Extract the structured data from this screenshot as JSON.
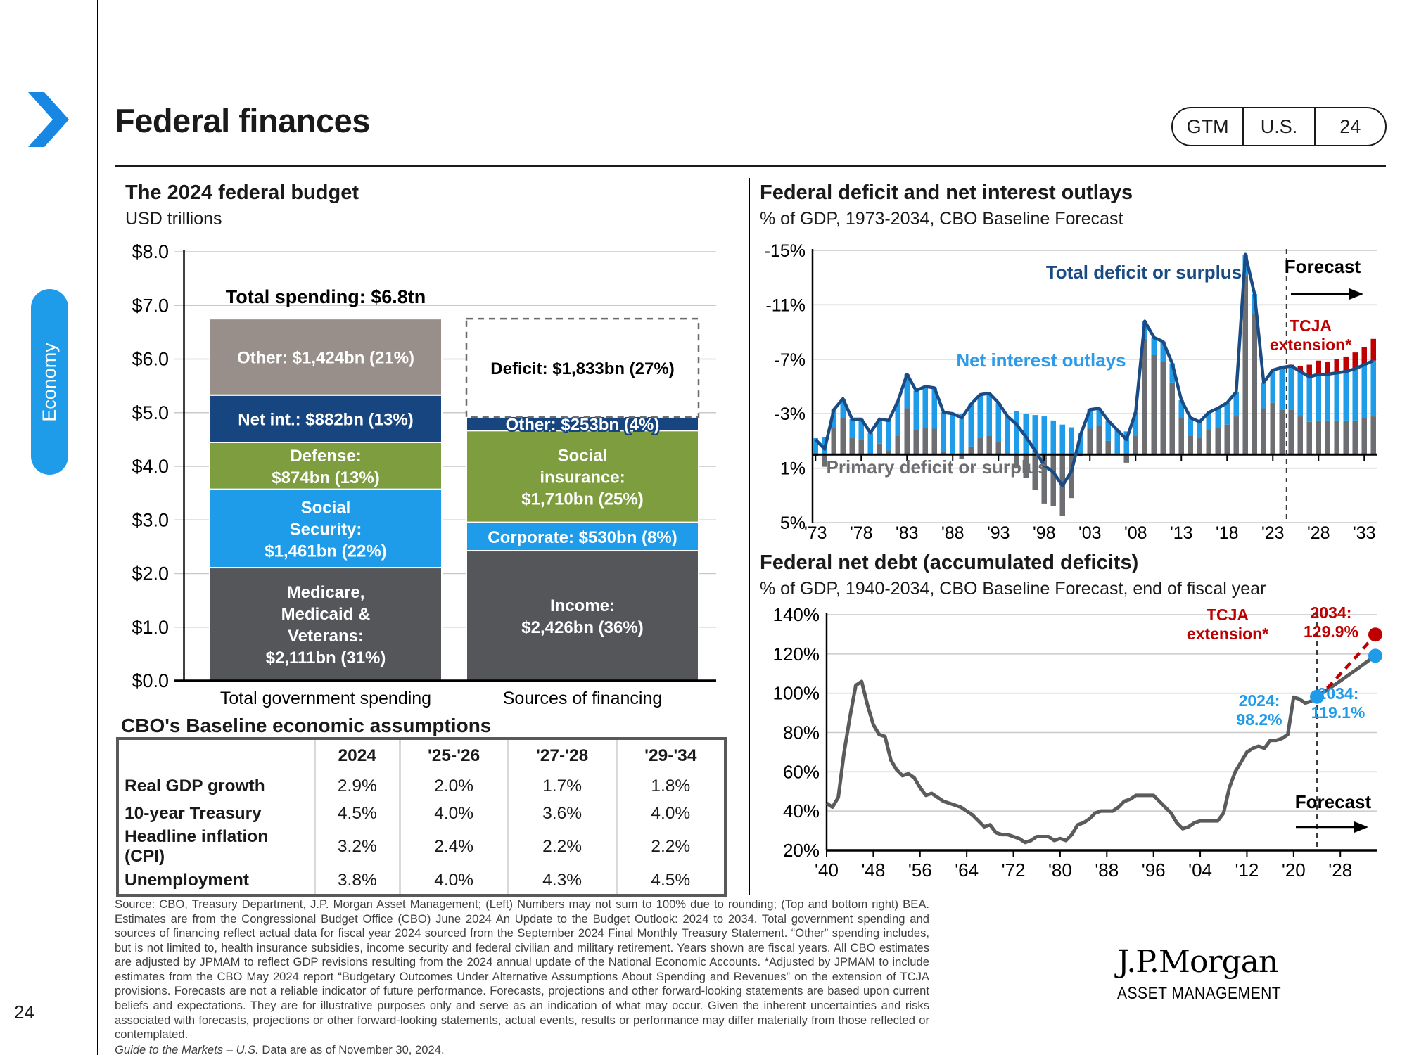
{
  "slide": {
    "title": "Federal finances",
    "page_number": "24",
    "section_tab": "Economy",
    "badge": {
      "gtm": "GTM",
      "region": "U.S.",
      "page": "24"
    }
  },
  "colors": {
    "blue": "#1E9CE9",
    "navy": "#17457F",
    "green": "#7E9D3E",
    "darkgray": "#54565A",
    "taupe": "#998F8A",
    "red": "#C00000",
    "line_navy": "#1A4B85",
    "bar_gray": "#6D6E71",
    "debt_gray": "#595B5D",
    "label_blue": "#2D9BE8",
    "grid": "#C9C9C9",
    "accent": "#1E9CE9"
  },
  "chart_data": [
    {
      "type": "bar",
      "variant": "stacked",
      "title": "The 2024 federal budget",
      "subtitle": "USD trillions",
      "ylabel": "USD trillions",
      "ylim": [
        0,
        8
      ],
      "ytick_prefix": "$",
      "annotation": "Total spending: $6.8tn",
      "categories": [
        "Total government spending",
        "Sources of financing"
      ],
      "bars": [
        {
          "category": "Total government spending",
          "segments": [
            {
              "name": "Medicare, Medicaid & Veterans",
              "value_bn": 2111,
              "pct": "31%",
              "color": "darkgray",
              "label": "Medicare,\nMedicaid &\nVeterans:\n$2,111bn (31%)"
            },
            {
              "name": "Social Security",
              "value_bn": 1461,
              "pct": "22%",
              "color": "blue",
              "label": "Social\nSecurity:\n$1,461bn (22%)"
            },
            {
              "name": "Defense",
              "value_bn": 874,
              "pct": "13%",
              "color": "green",
              "label": "Defense:\n$874bn (13%)"
            },
            {
              "name": "Net interest",
              "value_bn": 882,
              "pct": "13%",
              "color": "navy",
              "label": "Net int.: $882bn (13%)"
            },
            {
              "name": "Other",
              "value_bn": 1424,
              "pct": "21%",
              "color": "taupe",
              "label": "Other: $1,424bn (21%)"
            }
          ]
        },
        {
          "category": "Sources of financing",
          "segments": [
            {
              "name": "Income taxes",
              "value_bn": 2426,
              "pct": "36%",
              "color": "darkgray",
              "label": "Income:\n$2,426bn (36%)"
            },
            {
              "name": "Corporate taxes",
              "value_bn": 530,
              "pct": "8%",
              "color": "blue",
              "label": "Corporate: $530bn (8%)"
            },
            {
              "name": "Social insurance",
              "value_bn": 1710,
              "pct": "25%",
              "color": "green",
              "label": "Social\ninsurance:\n$1,710bn (25%)"
            },
            {
              "name": "Other",
              "value_bn": 253,
              "pct": "4%",
              "color": "navy",
              "label": "Other: $253bn (4%)",
              "outline": true
            },
            {
              "name": "Deficit",
              "value_bn": 1833,
              "pct": "27%",
              "style": "dashed",
              "label": "Deficit: $1,833bn (27%)"
            }
          ]
        }
      ]
    },
    {
      "type": "bar",
      "variant": "stacked-bars-with-line",
      "title": "Federal deficit and net interest outlays",
      "subtitle": "% of GDP, 1973-2034, CBO Baseline Forecast",
      "x_start": 1973,
      "x_end": 2034,
      "ylim": [
        -15,
        5
      ],
      "y_ticks": [
        "-15%",
        "-11%",
        "-7%",
        "-3%",
        "1%",
        "5%"
      ],
      "y_tick_values": [
        -15,
        -11,
        -7,
        -3,
        1,
        5
      ],
      "xtick_labels": [
        "'73",
        "'78",
        "'83",
        "'88",
        "'93",
        "'98",
        "'03",
        "'08",
        "'13",
        "'18",
        "'23",
        "'28",
        "'33"
      ],
      "forecast_boundary_year": 2024.5,
      "series": [
        {
          "name": "Total deficit or surplus",
          "type": "line",
          "color": "line_navy",
          "values": [
            -1.1,
            -0.4,
            -3.3,
            -4.1,
            -2.6,
            -2.6,
            -1.6,
            -2.6,
            -2.5,
            -3.9,
            -5.9,
            -4.7,
            -5.0,
            -4.9,
            -3.1,
            -3.0,
            -2.7,
            -3.7,
            -4.4,
            -4.5,
            -3.8,
            -2.8,
            -2.2,
            -1.3,
            -0.3,
            0.8,
            1.3,
            2.3,
            1.2,
            -1.5,
            -3.3,
            -3.4,
            -2.5,
            -1.8,
            -1.1,
            -3.1,
            -9.8,
            -8.6,
            -8.3,
            -6.7,
            -4.0,
            -2.7,
            -2.4,
            -3.1,
            -3.4,
            -3.8,
            -4.6,
            -14.7,
            -11.8,
            -5.3,
            -6.2,
            -6.4,
            -6.5,
            -6.1,
            -5.7,
            -5.9,
            -5.9,
            -6.0,
            -6.1,
            -6.3,
            -6.6,
            -6.9
          ]
        },
        {
          "name": "Net interest outlays",
          "type": "bar",
          "color": "blue",
          "values": [
            1.2,
            1.3,
            1.3,
            1.4,
            1.4,
            1.5,
            1.6,
            1.8,
            2.2,
            2.5,
            2.5,
            2.9,
            3.0,
            3.0,
            2.9,
            2.9,
            3.0,
            3.1,
            3.2,
            3.1,
            2.9,
            2.8,
            3.2,
            3.0,
            2.9,
            2.8,
            2.5,
            2.2,
            2.0,
            1.6,
            1.4,
            1.3,
            1.5,
            1.7,
            1.7,
            1.7,
            1.3,
            1.3,
            1.5,
            1.4,
            1.3,
            1.3,
            1.2,
            1.3,
            1.4,
            1.6,
            1.8,
            1.6,
            1.5,
            1.9,
            2.4,
            3.1,
            3.2,
            3.3,
            3.3,
            3.4,
            3.4,
            3.5,
            3.6,
            3.8,
            3.9,
            4.1
          ]
        },
        {
          "name": "Primary deficit or surplus",
          "type": "bar",
          "color": "bar_gray",
          "derived": "total_minus_net_interest"
        },
        {
          "name": "TCJA extension*",
          "type": "bar",
          "color": "red",
          "start_year": 2025,
          "extra_values": [
            0.1,
            0.4,
            0.9,
            1.0,
            0.9,
            1.0,
            1.1,
            1.2,
            1.3,
            1.6
          ]
        }
      ],
      "labels": {
        "total": "Total deficit or surplus",
        "net": "Net interest outlays",
        "primary": "Primary deficit or surplus",
        "forecast": "Forecast",
        "tcja_1": "TCJA",
        "tcja_2": "extension*"
      }
    },
    {
      "type": "line",
      "title": "Federal net debt (accumulated deficits)",
      "subtitle": "% of GDP, 1940-2034, CBO Baseline Forecast, end of fiscal year",
      "x_start": 1940,
      "x_end": 2034,
      "ylim": [
        20,
        140
      ],
      "y_ticks": [
        "20%",
        "40%",
        "60%",
        "80%",
        "100%",
        "120%",
        "140%"
      ],
      "y_tick_values": [
        20,
        40,
        60,
        80,
        100,
        120,
        140
      ],
      "xtick_labels": [
        "'40",
        "'48",
        "'56",
        "'64",
        "'72",
        "'80",
        "'88",
        "'96",
        "'04",
        "'12",
        "'20",
        "'28"
      ],
      "forecast_boundary_year": 2024,
      "series": [
        {
          "name": "Net debt (CBO baseline)",
          "color": "debt_gray",
          "values": [
            44,
            42,
            47,
            70,
            88,
            104,
            106,
            94,
            84,
            79,
            78,
            66,
            61,
            58,
            59,
            57,
            52,
            48,
            49,
            47,
            45,
            44,
            43,
            42,
            40,
            38,
            35,
            32,
            33,
            29,
            28,
            28,
            27,
            26,
            24,
            25,
            27,
            27,
            27,
            25,
            26,
            25,
            28,
            33,
            34,
            36,
            39,
            40,
            40,
            40,
            42,
            45,
            46,
            48,
            48,
            48,
            48,
            45,
            42,
            39,
            34,
            31,
            32,
            34,
            35,
            35,
            35,
            35,
            39,
            52,
            60,
            65,
            70,
            72,
            73,
            72,
            76,
            76,
            77,
            79,
            98,
            97,
            95,
            96,
            98.2,
            100.2,
            102.3,
            104.2,
            106.3,
            108.4,
            110.5,
            112.6,
            114.8,
            117.0,
            119.1
          ]
        },
        {
          "name": "TCJA extension*",
          "color": "red",
          "dashed": true,
          "start_year": 2024,
          "values": [
            98.2,
            100.5,
            103.3,
            106.5,
            109.8,
            113.0,
            116.3,
            119.6,
            123.0,
            126.4,
            129.9
          ]
        }
      ],
      "key_points": {
        "p2024": "98.2",
        "p2034_base": "119.1",
        "p2034_tcja": "129.9"
      },
      "labels": {
        "tcja_1": "TCJA",
        "tcja_2": "extension*",
        "y2024_1": "2024:",
        "y2024_2": "98.2%",
        "y2034b_1": "2034:",
        "y2034b_2": "119.1%",
        "y2034r_1": "2034:",
        "y2034r_2": "129.9%",
        "forecast": "Forecast"
      }
    }
  ],
  "assumptions_table": {
    "title": "CBO's Baseline economic assumptions",
    "col_headers": [
      "",
      "2024",
      "'25-'26",
      "'27-'28",
      "'29-'34"
    ],
    "rows": [
      {
        "label": "Real GDP growth",
        "values": [
          "2.9%",
          "2.0%",
          "1.7%",
          "1.8%"
        ]
      },
      {
        "label": "10-year Treasury",
        "values": [
          "4.5%",
          "4.0%",
          "3.6%",
          "4.0%"
        ]
      },
      {
        "label": "Headline inflation (CPI)",
        "values": [
          "3.2%",
          "2.4%",
          "2.2%",
          "2.2%"
        ]
      },
      {
        "label": "Unemployment",
        "values": [
          "3.8%",
          "4.0%",
          "4.3%",
          "4.5%"
        ]
      }
    ]
  },
  "footer": {
    "disclaimer": "Source: CBO, Treasury Department, J.P. Morgan Asset Management; (Left) Numbers may not sum to 100% due to rounding; (Top and bottom right) BEA. Estimates are from the Congressional Budget Office (CBO) June 2024 An Update to the Budget Outlook: 2024 to 2034. Total government spending and sources of financing reflect actual data for fiscal year 2024 sourced from the September 2024 Final Monthly Treasury Statement. “Other” spending includes, but is not limited to, health insurance subsidies, income security and federal civilian and military retirement. Years shown are fiscal years. All CBO estimates are adjusted by JPMAM to reflect GDP revisions resulting from the 2024 annual update of the National Economic Accounts. *Adjusted by JPMAM to include estimates from the CBO May 2024 report “Budgetary Outcomes Under Alternative Assumptions About Spending and Revenues” on the extension of TCJA provisions. Forecasts are not a reliable indicator of future performance. Forecasts, projections and other forward-looking statements are based upon current beliefs and expectations. They are for illustrative purposes only and serve as an indication of what may occur. Given the inherent uncertainties and risks associated with forecasts, projections or other forward-looking statements, actual events, results or performance may differ materially from those reflected or contemplated.",
    "gtm_italic": "Guide to the Markets – U.S.",
    "gtm_rest": " Data are as of November 30, 2024."
  },
  "logo": {
    "name": "J.P.Morgan",
    "sub": "ASSET MANAGEMENT"
  }
}
